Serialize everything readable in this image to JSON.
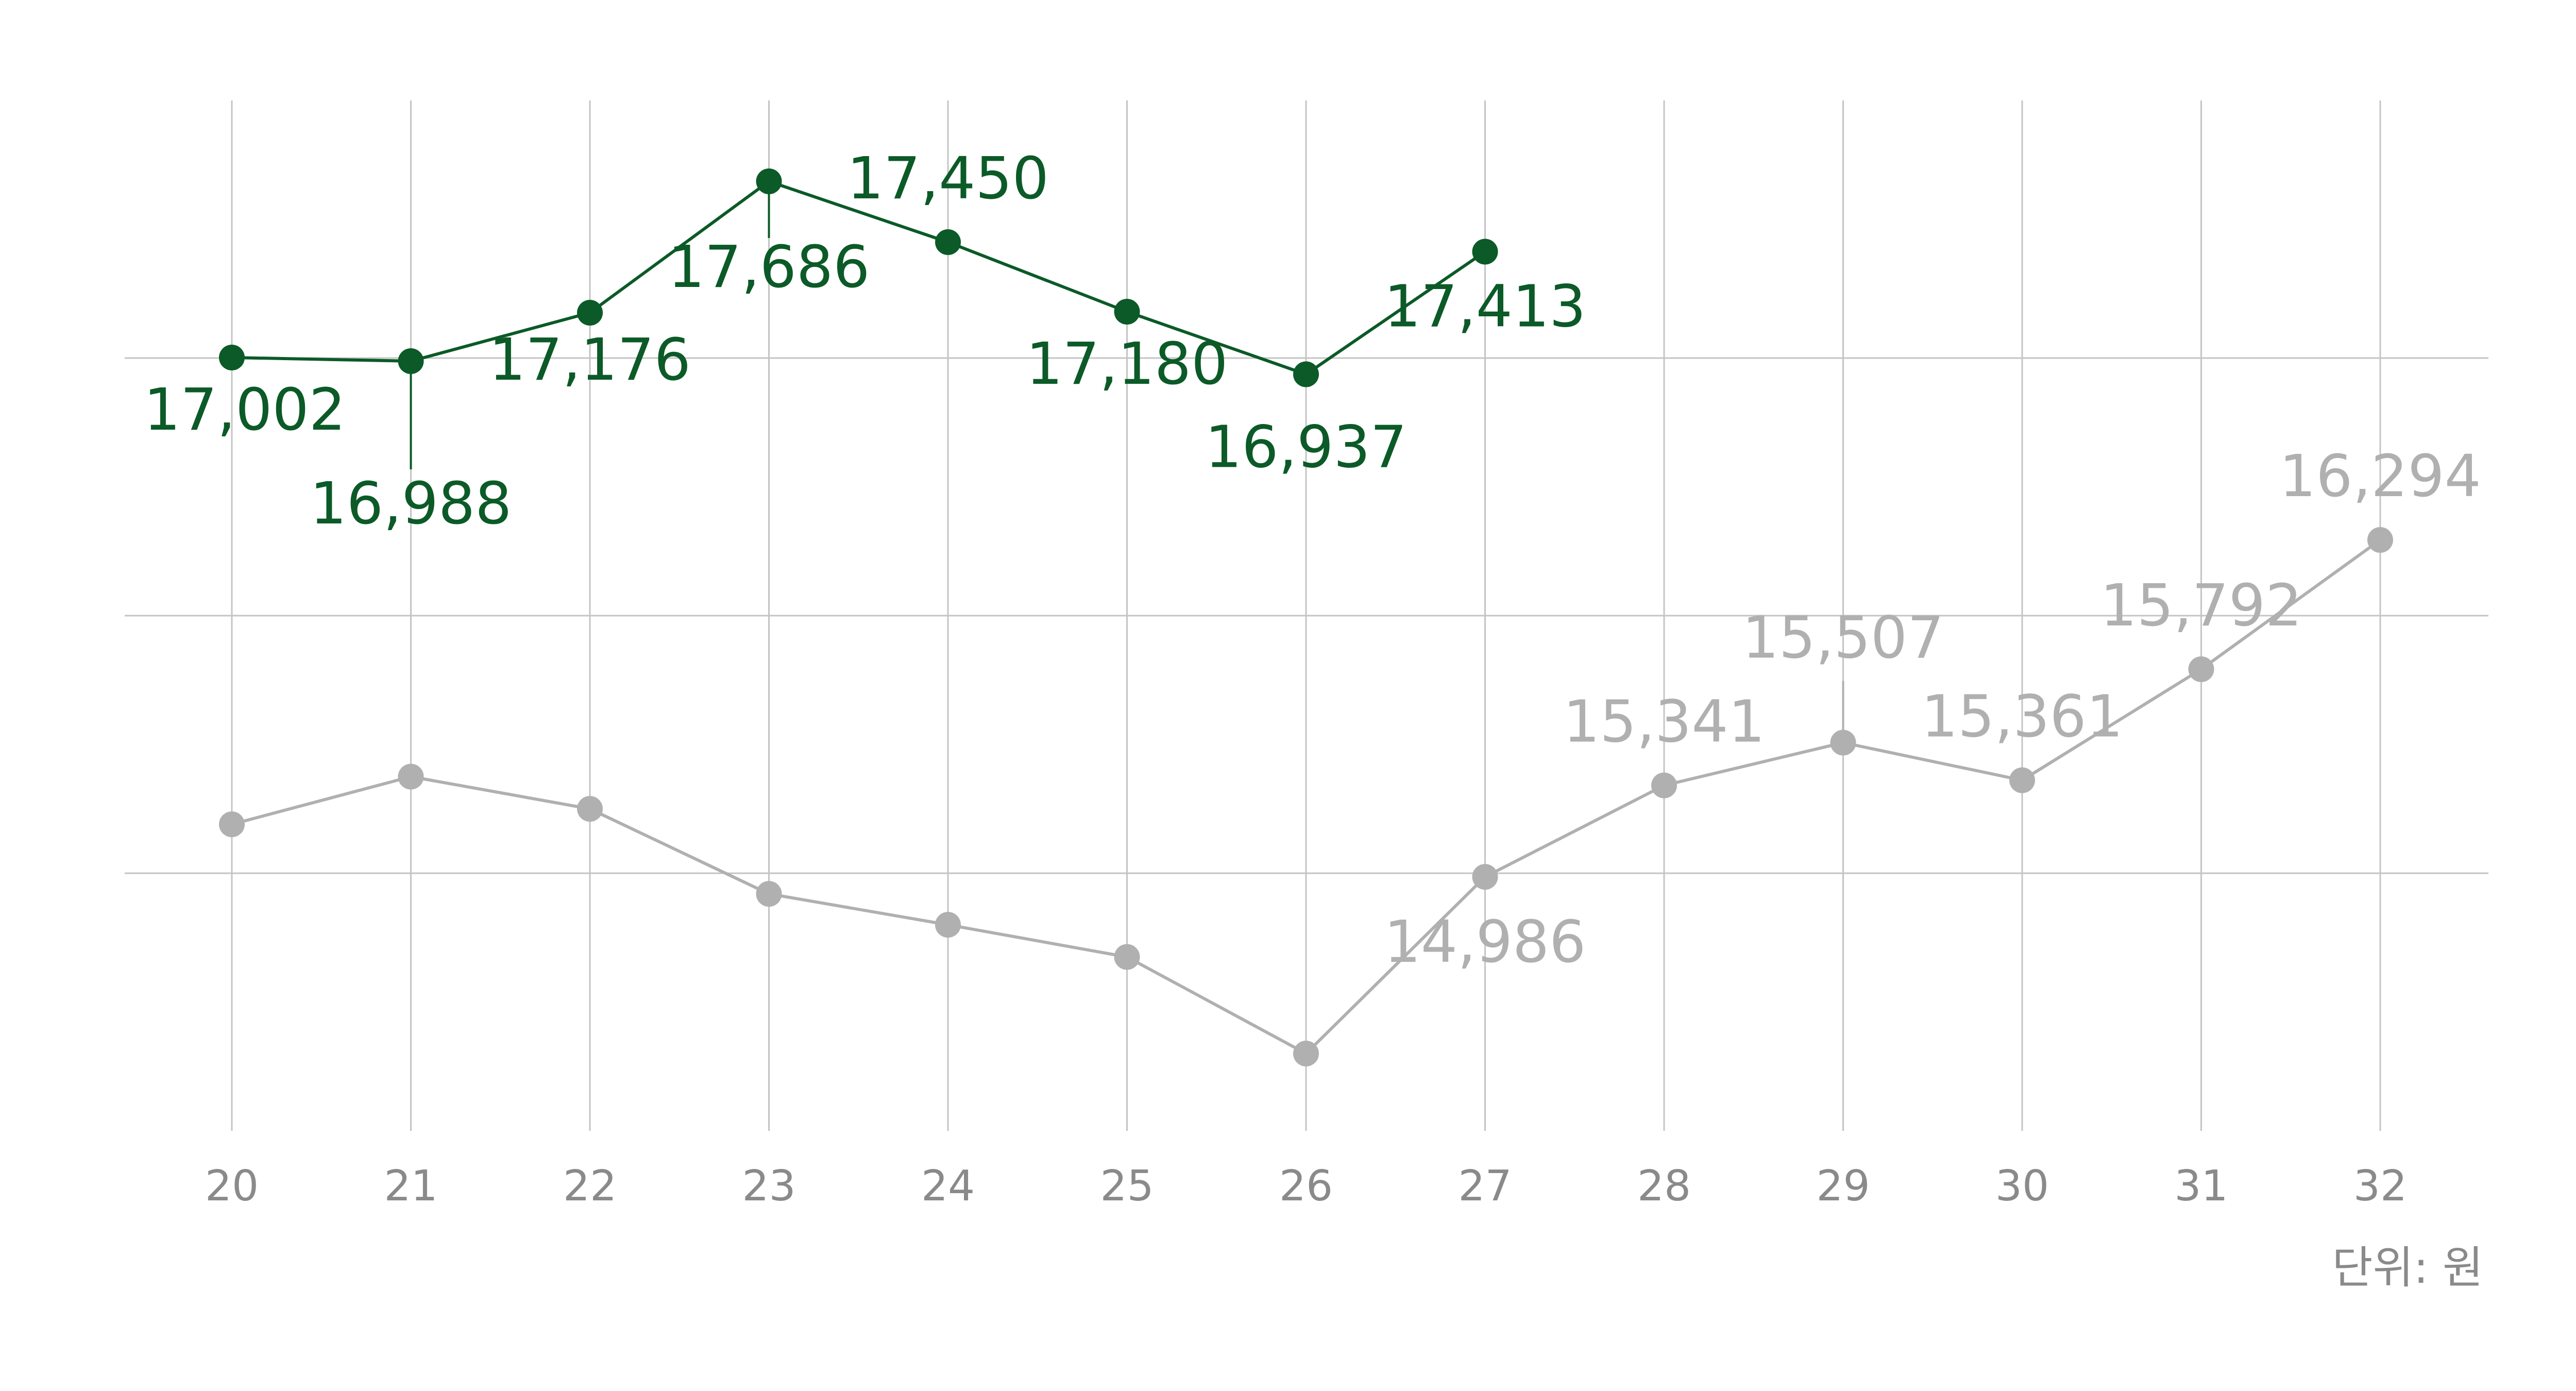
{
  "chart_data": {
    "type": "line",
    "x": [
      "20",
      "21",
      "22",
      "23",
      "24",
      "25",
      "26",
      "27",
      "28",
      "29",
      "30",
      "31",
      "32"
    ],
    "ylim": [
      14000,
      18000
    ],
    "gridlines_y": [
      15000,
      16000,
      17000
    ],
    "unit_label": "단위: 원",
    "grid": true,
    "series": [
      {
        "color": "#0b5a27",
        "values": [
          17002,
          16988,
          17176,
          17686,
          17450,
          17180,
          16937,
          17413,
          null,
          null,
          null,
          null,
          null
        ],
        "labels": [
          "17,002",
          "16,988",
          "17,176",
          "17,686",
          "17,450",
          "17,180",
          "16,937",
          "17,413",
          null,
          null,
          null,
          null,
          null
        ]
      },
      {
        "color": "#b0b0b0",
        "values": [
          15190,
          15375,
          15250,
          14920,
          14800,
          14675,
          14300,
          14986,
          15341,
          15507,
          15361,
          15792,
          16294
        ],
        "labels": [
          null,
          null,
          null,
          null,
          null,
          null,
          null,
          "14,986",
          "15,341",
          "15,507",
          "15,361",
          "15,792",
          "16,294"
        ]
      }
    ]
  }
}
